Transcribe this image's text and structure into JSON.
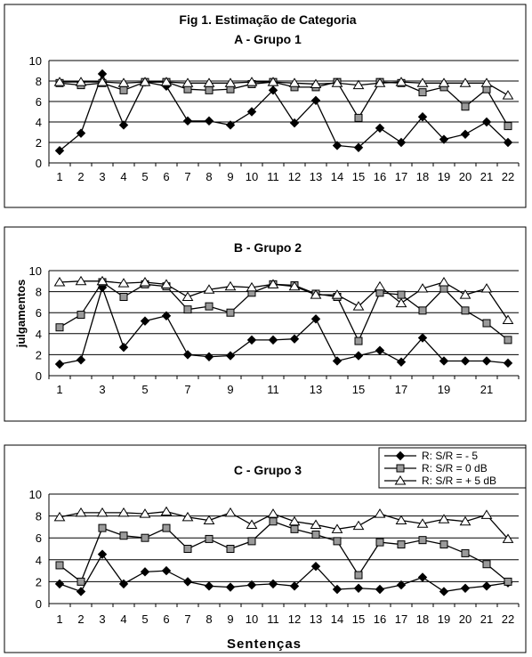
{
  "figure_title": "Fig 1.  Estimação de Categoria",
  "colors": {
    "diamond": "#000000",
    "square": "#9a9a9a",
    "triangle": "#ffffff"
  },
  "legend": [
    {
      "label": "R: S/R = - 5",
      "marker": "diamond"
    },
    {
      "label": "R: S/R = 0 dB",
      "marker": "square"
    },
    {
      "label": "R: S/R = + 5 dB",
      "marker": "triangle"
    }
  ],
  "chart_data": [
    {
      "type": "line",
      "title": "A - Grupo 1",
      "xlabel": "",
      "ylabel": "",
      "x": [
        1,
        2,
        3,
        4,
        5,
        6,
        7,
        8,
        9,
        10,
        11,
        12,
        13,
        14,
        15,
        16,
        17,
        18,
        19,
        20,
        21,
        22
      ],
      "x_tick_labels": [
        "1",
        "2",
        "3",
        "4",
        "5",
        "6",
        "7",
        "8",
        "9",
        "10",
        "11",
        "12",
        "13",
        "14",
        "15",
        "16",
        "17",
        "18",
        "19",
        "20",
        "21",
        "22"
      ],
      "y_ticks": [
        "0",
        "2",
        "4",
        "6",
        "8",
        "10"
      ],
      "ylim": [
        0,
        10
      ],
      "grid": "horizontal",
      "series": [
        {
          "marker": "diamond",
          "values": [
            1.2,
            2.9,
            8.7,
            3.7,
            7.9,
            7.5,
            4.1,
            4.1,
            3.7,
            5.0,
            7.1,
            3.9,
            6.1,
            1.7,
            1.5,
            3.4,
            2.0,
            4.5,
            2.3,
            2.8,
            4.0,
            2.0
          ]
        },
        {
          "marker": "square",
          "values": [
            7.8,
            7.6,
            7.8,
            7.1,
            7.9,
            7.9,
            7.2,
            7.1,
            7.2,
            7.7,
            7.9,
            7.4,
            7.4,
            7.9,
            4.4,
            7.9,
            7.8,
            6.9,
            7.4,
            5.5,
            7.2,
            3.6
          ]
        },
        {
          "marker": "triangle",
          "values": [
            7.9,
            7.9,
            7.9,
            7.8,
            7.9,
            7.9,
            7.8,
            7.8,
            7.8,
            7.9,
            7.9,
            7.8,
            7.7,
            7.8,
            7.6,
            7.8,
            7.9,
            7.8,
            7.8,
            7.8,
            7.8,
            6.6
          ]
        }
      ]
    },
    {
      "type": "line",
      "title": "B - Grupo 2",
      "xlabel": "",
      "ylabel": "julgamentos",
      "x": [
        1,
        2,
        3,
        4,
        5,
        6,
        7,
        8,
        9,
        10,
        11,
        12,
        13,
        14,
        15,
        16,
        17,
        18,
        19,
        20,
        21,
        22
      ],
      "x_tick_labels": [
        "1",
        "",
        "3",
        "",
        "5",
        "",
        "7",
        "",
        "9",
        "",
        "11",
        "",
        "13",
        "",
        "15",
        "",
        "17",
        "",
        "19",
        "",
        "21",
        ""
      ],
      "y_ticks": [
        "0",
        "2",
        "4",
        "6",
        "8",
        "10"
      ],
      "ylim": [
        0,
        10
      ],
      "grid": "horizontal",
      "series": [
        {
          "marker": "diamond",
          "values": [
            1.1,
            1.5,
            8.4,
            2.7,
            5.2,
            5.7,
            2.0,
            1.8,
            1.9,
            3.4,
            3.4,
            3.5,
            5.4,
            1.4,
            1.9,
            2.4,
            1.3,
            3.6,
            1.4,
            1.4,
            1.4,
            1.2
          ]
        },
        {
          "marker": "square",
          "values": [
            4.6,
            5.8,
            8.9,
            7.5,
            8.7,
            8.5,
            6.3,
            6.6,
            6.0,
            7.9,
            8.7,
            8.6,
            7.8,
            7.5,
            3.3,
            7.9,
            7.7,
            6.2,
            8.3,
            6.2,
            5.0,
            3.4
          ]
        },
        {
          "marker": "triangle",
          "values": [
            8.9,
            9.0,
            9.0,
            8.8,
            8.9,
            8.7,
            7.5,
            8.2,
            8.5,
            8.4,
            8.7,
            8.5,
            7.7,
            7.7,
            6.6,
            8.5,
            6.9,
            8.3,
            8.9,
            7.7,
            8.3,
            5.3
          ]
        }
      ]
    },
    {
      "type": "line",
      "title": "C - Grupo 3",
      "xlabel": "Sentenças",
      "ylabel": "",
      "x": [
        1,
        2,
        3,
        4,
        5,
        6,
        7,
        8,
        9,
        10,
        11,
        12,
        13,
        14,
        15,
        16,
        17,
        18,
        19,
        20,
        21,
        22
      ],
      "x_tick_labels": [
        "1",
        "2",
        "3",
        "4",
        "5",
        "6",
        "7",
        "8",
        "9",
        "10",
        "11",
        "12",
        "13",
        "14",
        "15",
        "16",
        "17",
        "18",
        "19",
        "20",
        "21",
        "22"
      ],
      "y_ticks": [
        "0",
        "2",
        "4",
        "6",
        "8",
        "10"
      ],
      "ylim": [
        0,
        10
      ],
      "grid": "horizontal",
      "series": [
        {
          "marker": "diamond",
          "values": [
            1.8,
            1.1,
            4.5,
            1.8,
            2.9,
            3.0,
            2.0,
            1.6,
            1.5,
            1.7,
            1.8,
            1.6,
            3.4,
            1.3,
            1.4,
            1.3,
            1.7,
            2.4,
            1.1,
            1.4,
            1.6,
            1.9
          ]
        },
        {
          "marker": "square",
          "values": [
            3.5,
            2.0,
            6.9,
            6.2,
            6.0,
            6.9,
            5.0,
            5.9,
            5.0,
            5.7,
            7.5,
            6.8,
            6.3,
            5.7,
            2.6,
            5.6,
            5.4,
            5.8,
            5.4,
            4.6,
            3.6,
            2.0
          ]
        },
        {
          "marker": "triangle",
          "values": [
            7.9,
            8.3,
            8.3,
            8.3,
            8.2,
            8.4,
            7.9,
            7.6,
            8.3,
            7.2,
            8.2,
            7.5,
            7.2,
            6.8,
            7.1,
            8.2,
            7.6,
            7.3,
            7.7,
            7.5,
            8.1,
            5.9
          ]
        }
      ]
    }
  ]
}
